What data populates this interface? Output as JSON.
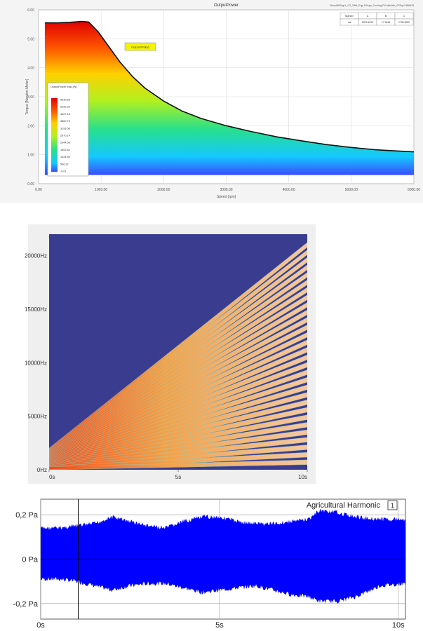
{
  "chart_data": [
    {
      "type": "area",
      "title": "OutputPower",
      "header_right": "Result800wp1_C3_3Wd_Eqp 10%pc_Cooling FN Idle/Idle_070kp1  888978",
      "annotation": "Output 070kp1",
      "xlabel": "Speed [rpm]",
      "ylabel": "Torque [Newton·Meter]",
      "x_ticks": [
        "0.00",
        "1000.00",
        "2000.00",
        "3000.00",
        "4000.00",
        "5000.00",
        "6000.00"
      ],
      "y_ticks": [
        "0.00",
        "1.00",
        "2.00",
        "3.00",
        "4.00",
        "5.00",
        "6.00"
      ],
      "xlim": [
        0,
        6000
      ],
      "ylim": [
        0,
        6
      ],
      "envelope": {
        "x": [
          100,
          300,
          500,
          700,
          800,
          950,
          1100,
          1300,
          1500,
          1700,
          2000,
          2300,
          2600,
          3000,
          3400,
          3800,
          4200,
          4600,
          5000,
          5400,
          5800,
          6000
        ],
        "y": [
          5.55,
          5.55,
          5.57,
          5.6,
          5.58,
          5.25,
          4.8,
          4.2,
          3.7,
          3.3,
          2.85,
          2.5,
          2.25,
          2.0,
          1.8,
          1.62,
          1.48,
          1.35,
          1.25,
          1.17,
          1.12,
          1.1
        ]
      },
      "table": {
        "header": [
          "Marker",
          "A",
          "B",
          "C"
        ],
        "row": [
          "val",
          "5575.4000",
          "17.4648",
          "2798.3959"
        ]
      },
      "colorbar": {
        "title": "OutputPower map [W]",
        "labels": [
          "5930.58",
          "5129.39",
          "4427.18",
          "3860.73",
          "3193.58",
          "2670.14",
          "2044.58",
          "1502.82",
          "1024.65",
          "506.32",
          "-0.01"
        ]
      },
      "grid": true
    },
    {
      "type": "heatmap",
      "subtype": "spectrogram",
      "y_ticks": [
        "0Hz",
        "5000Hz",
        "10000Hz",
        "15000Hz",
        "20000Hz"
      ],
      "y_tick_values": [
        0,
        5000,
        10000,
        15000,
        20000
      ],
      "ylim": [
        0,
        22000
      ],
      "x_ticks": [
        "0s",
        "5s",
        "10s"
      ],
      "x_tick_values": [
        0,
        5,
        10
      ],
      "xlim": [
        0,
        10
      ],
      "harmonics": {
        "fundamental_start_hz": 60,
        "fundamental_end_hz": 700,
        "count": 30,
        "stripe_width_hz": 220
      },
      "background_color": "#3a3d8f"
    },
    {
      "type": "area",
      "subtype": "waveform",
      "title": "Agricultural Harmonic",
      "channel_badge": "1",
      "y_ticks": [
        "0,2 Pa",
        "0 Pa",
        "-0,2 Pa"
      ],
      "y_tick_values": [
        0.2,
        0,
        -0.2
      ],
      "ylim": [
        -0.27,
        0.27
      ],
      "x_ticks": [
        "0s",
        "5s",
        "10s"
      ],
      "x_tick_values": [
        0,
        5,
        10
      ],
      "xlim": [
        0,
        10.2
      ],
      "cursor_x": 1.05,
      "envelope": {
        "x": [
          0,
          0.5,
          1.0,
          1.5,
          2.0,
          2.5,
          3.0,
          3.5,
          4.0,
          4.5,
          5.0,
          5.5,
          6.0,
          6.5,
          7.0,
          7.5,
          7.8,
          8.3,
          8.8,
          9.5,
          10.2
        ],
        "upper": [
          0.15,
          0.15,
          0.16,
          0.17,
          0.2,
          0.18,
          0.16,
          0.15,
          0.18,
          0.2,
          0.2,
          0.18,
          0.17,
          0.17,
          0.18,
          0.19,
          0.23,
          0.22,
          0.2,
          0.19,
          0.19
        ],
        "lower": [
          -0.1,
          -0.1,
          -0.11,
          -0.13,
          -0.15,
          -0.13,
          -0.12,
          -0.12,
          -0.14,
          -0.16,
          -0.15,
          -0.14,
          -0.13,
          -0.15,
          -0.17,
          -0.18,
          -0.2,
          -0.2,
          -0.18,
          -0.13,
          -0.12
        ]
      },
      "color": "#0000ff",
      "grid": true
    }
  ]
}
